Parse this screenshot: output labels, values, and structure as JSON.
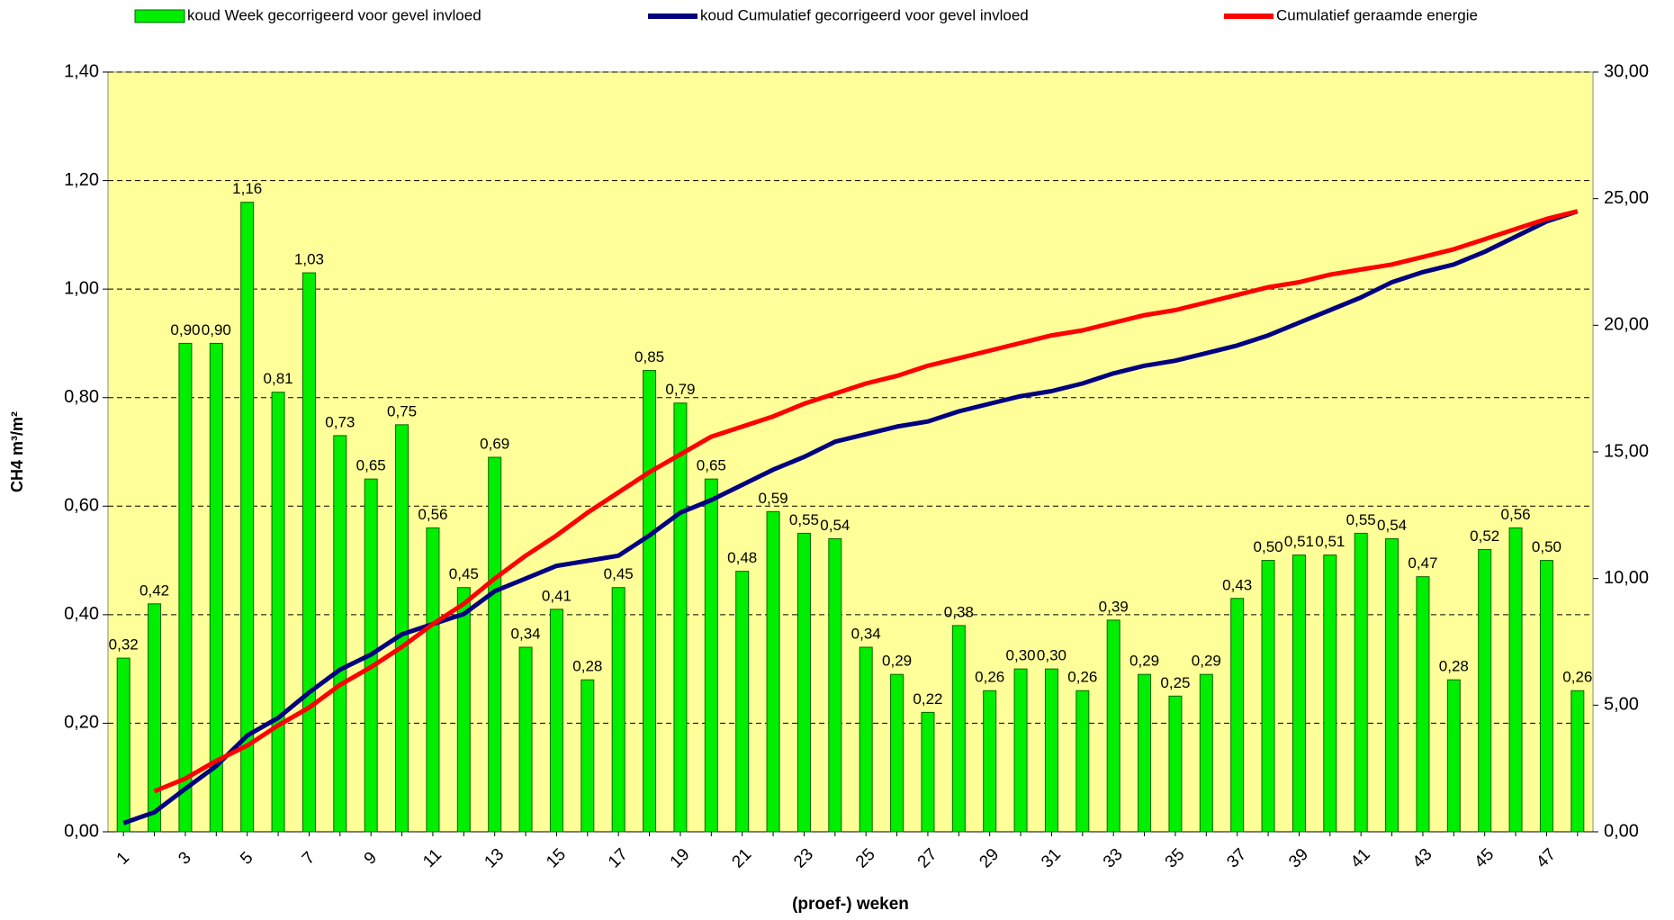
{
  "chart_data": {
    "type": "bar",
    "legend_position": "top",
    "y_label": "CH4 m³/m²",
    "x_label": "(proef-) weken",
    "categories": [
      1,
      null,
      3,
      null,
      5,
      null,
      7,
      null,
      9,
      null,
      11,
      null,
      13,
      null,
      15,
      null,
      17,
      null,
      19,
      null,
      21,
      null,
      23,
      null,
      25,
      null,
      27,
      null,
      29,
      null,
      31,
      null,
      33,
      null,
      35,
      null,
      37,
      null,
      39,
      null,
      41,
      null,
      43,
      null,
      45,
      null,
      47,
      null
    ],
    "series": [
      {
        "name": "koud  Week gecorrigeerd voor gevel invloed",
        "color": "#00ee00",
        "type": "bar",
        "values": [
          0.32,
          0.42,
          0.9,
          0.9,
          1.16,
          0.81,
          1.03,
          0.73,
          0.65,
          0.75,
          0.56,
          0.45,
          0.69,
          0.34,
          0.41,
          0.28,
          0.45,
          0.85,
          0.79,
          0.65,
          0.48,
          0.59,
          0.55,
          0.54,
          0.34,
          0.29,
          0.22,
          0.38,
          0.26,
          0.3,
          0.3,
          0.26,
          0.39,
          0.29,
          0.25,
          0.29,
          0.43,
          0.5,
          0.51,
          0.51,
          0.55,
          0.54,
          0.47,
          0.28,
          0.52,
          0.56,
          0.5,
          0.26
        ],
        "value_labels": [
          "0,32",
          "0,42",
          "0,90",
          "0,90",
          "1,16",
          "0,81",
          "1,03",
          "0,73",
          "0,65",
          "0,75",
          "0,56",
          "0,45",
          "0,69",
          "0,34",
          "0,41",
          "0,28",
          "0,45",
          "0,85",
          "0,79",
          "0,65",
          "0,48",
          "0,59",
          "0,55",
          "0,54",
          "0,34",
          "0,29",
          "0,22",
          "0,38",
          "0,26",
          "0,30",
          "0,30",
          "0,26",
          "0,39",
          "0,29",
          "0,25",
          "0,29",
          "0,43",
          "0,50",
          "0,51",
          "0,51",
          "0,55",
          "0,54",
          "0,47",
          "0,28",
          "0,52",
          "0,56",
          "0,50",
          "0,26"
        ]
      },
      {
        "name": "koud Cumulatief gecorrigeerd voor gevel invloed",
        "color": "#000080",
        "type": "line",
        "axis": "y2",
        "values": [
          0.34,
          0.77,
          1.7,
          2.6,
          3.8,
          4.5,
          5.5,
          6.4,
          7.0,
          7.8,
          8.2,
          8.6,
          9.5,
          10.0,
          10.5,
          10.7,
          10.9,
          11.7,
          12.6,
          13.1,
          13.7,
          14.3,
          14.8,
          15.4,
          15.7,
          16.0,
          16.2,
          16.6,
          16.9,
          17.2,
          17.4,
          17.7,
          18.1,
          18.4,
          18.6,
          18.9,
          19.2,
          19.6,
          20.1,
          20.6,
          21.1,
          21.7,
          22.1,
          22.4,
          22.9,
          23.5,
          24.1,
          24.5
        ]
      },
      {
        "name": "Cumulatief geraamde energie",
        "color": "#ff0000",
        "type": "line",
        "axis": "y2",
        "values": [
          null,
          1.6,
          2.1,
          2.8,
          3.4,
          4.2,
          4.9,
          5.8,
          6.5,
          7.3,
          8.2,
          9.0,
          10.0,
          10.9,
          11.7,
          12.6,
          13.4,
          14.2,
          14.9,
          15.6,
          16.0,
          16.4,
          16.9,
          17.3,
          17.7,
          18.0,
          18.4,
          18.7,
          19.0,
          19.3,
          19.6,
          19.8,
          20.1,
          20.4,
          20.6,
          20.9,
          21.2,
          21.5,
          21.7,
          22.0,
          22.2,
          22.4,
          22.7,
          23.0,
          23.4,
          23.8,
          24.2,
          24.5
        ]
      }
    ],
    "ylim": [
      0,
      1.4
    ],
    "yticks": [
      {
        "value": 0,
        "label": "0,00"
      },
      {
        "value": 0.2,
        "label": "0,20"
      },
      {
        "value": 0.4,
        "label": "0,40"
      },
      {
        "value": 0.6,
        "label": "0,60"
      },
      {
        "value": 0.8,
        "label": "0,80"
      },
      {
        "value": 1.0,
        "label": "1,00"
      },
      {
        "value": 1.2,
        "label": "1,20"
      },
      {
        "value": 1.4,
        "label": "1,40"
      }
    ],
    "y2lim": [
      0,
      30
    ],
    "y2ticks": [
      {
        "value": 0,
        "label": "0,00"
      },
      {
        "value": 5,
        "label": "5,00"
      },
      {
        "value": 10,
        "label": "10,00"
      },
      {
        "value": 15,
        "label": "15,00"
      },
      {
        "value": 20,
        "label": "20,00"
      },
      {
        "value": 25,
        "label": "25,00"
      },
      {
        "value": 30,
        "label": "30,00"
      }
    ],
    "grid": true,
    "plot_background": "#ffff99"
  }
}
